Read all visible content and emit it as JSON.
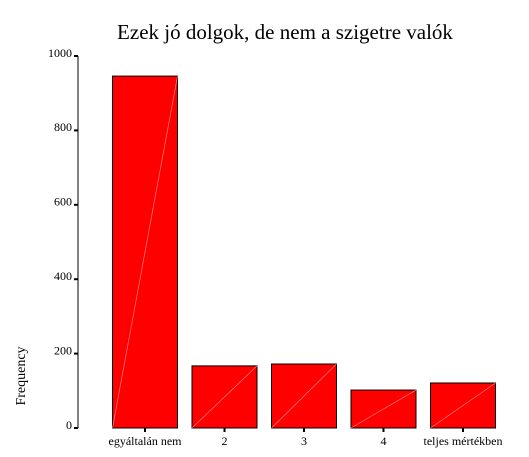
{
  "chart_data": {
    "type": "bar",
    "title": "Ezek jó dolgok, de nem a szigetre valók",
    "y_label": "Frequency",
    "categories": [
      "egyáltalán nem",
      "2",
      "3",
      "4",
      "teljes mértékben"
    ],
    "values": [
      946,
      167,
      172,
      102,
      121
    ],
    "color": "#ff0000",
    "ylim": [
      0,
      1000
    ],
    "yticks": [
      0,
      200,
      400,
      600,
      800,
      1000
    ],
    "grid": false
  }
}
